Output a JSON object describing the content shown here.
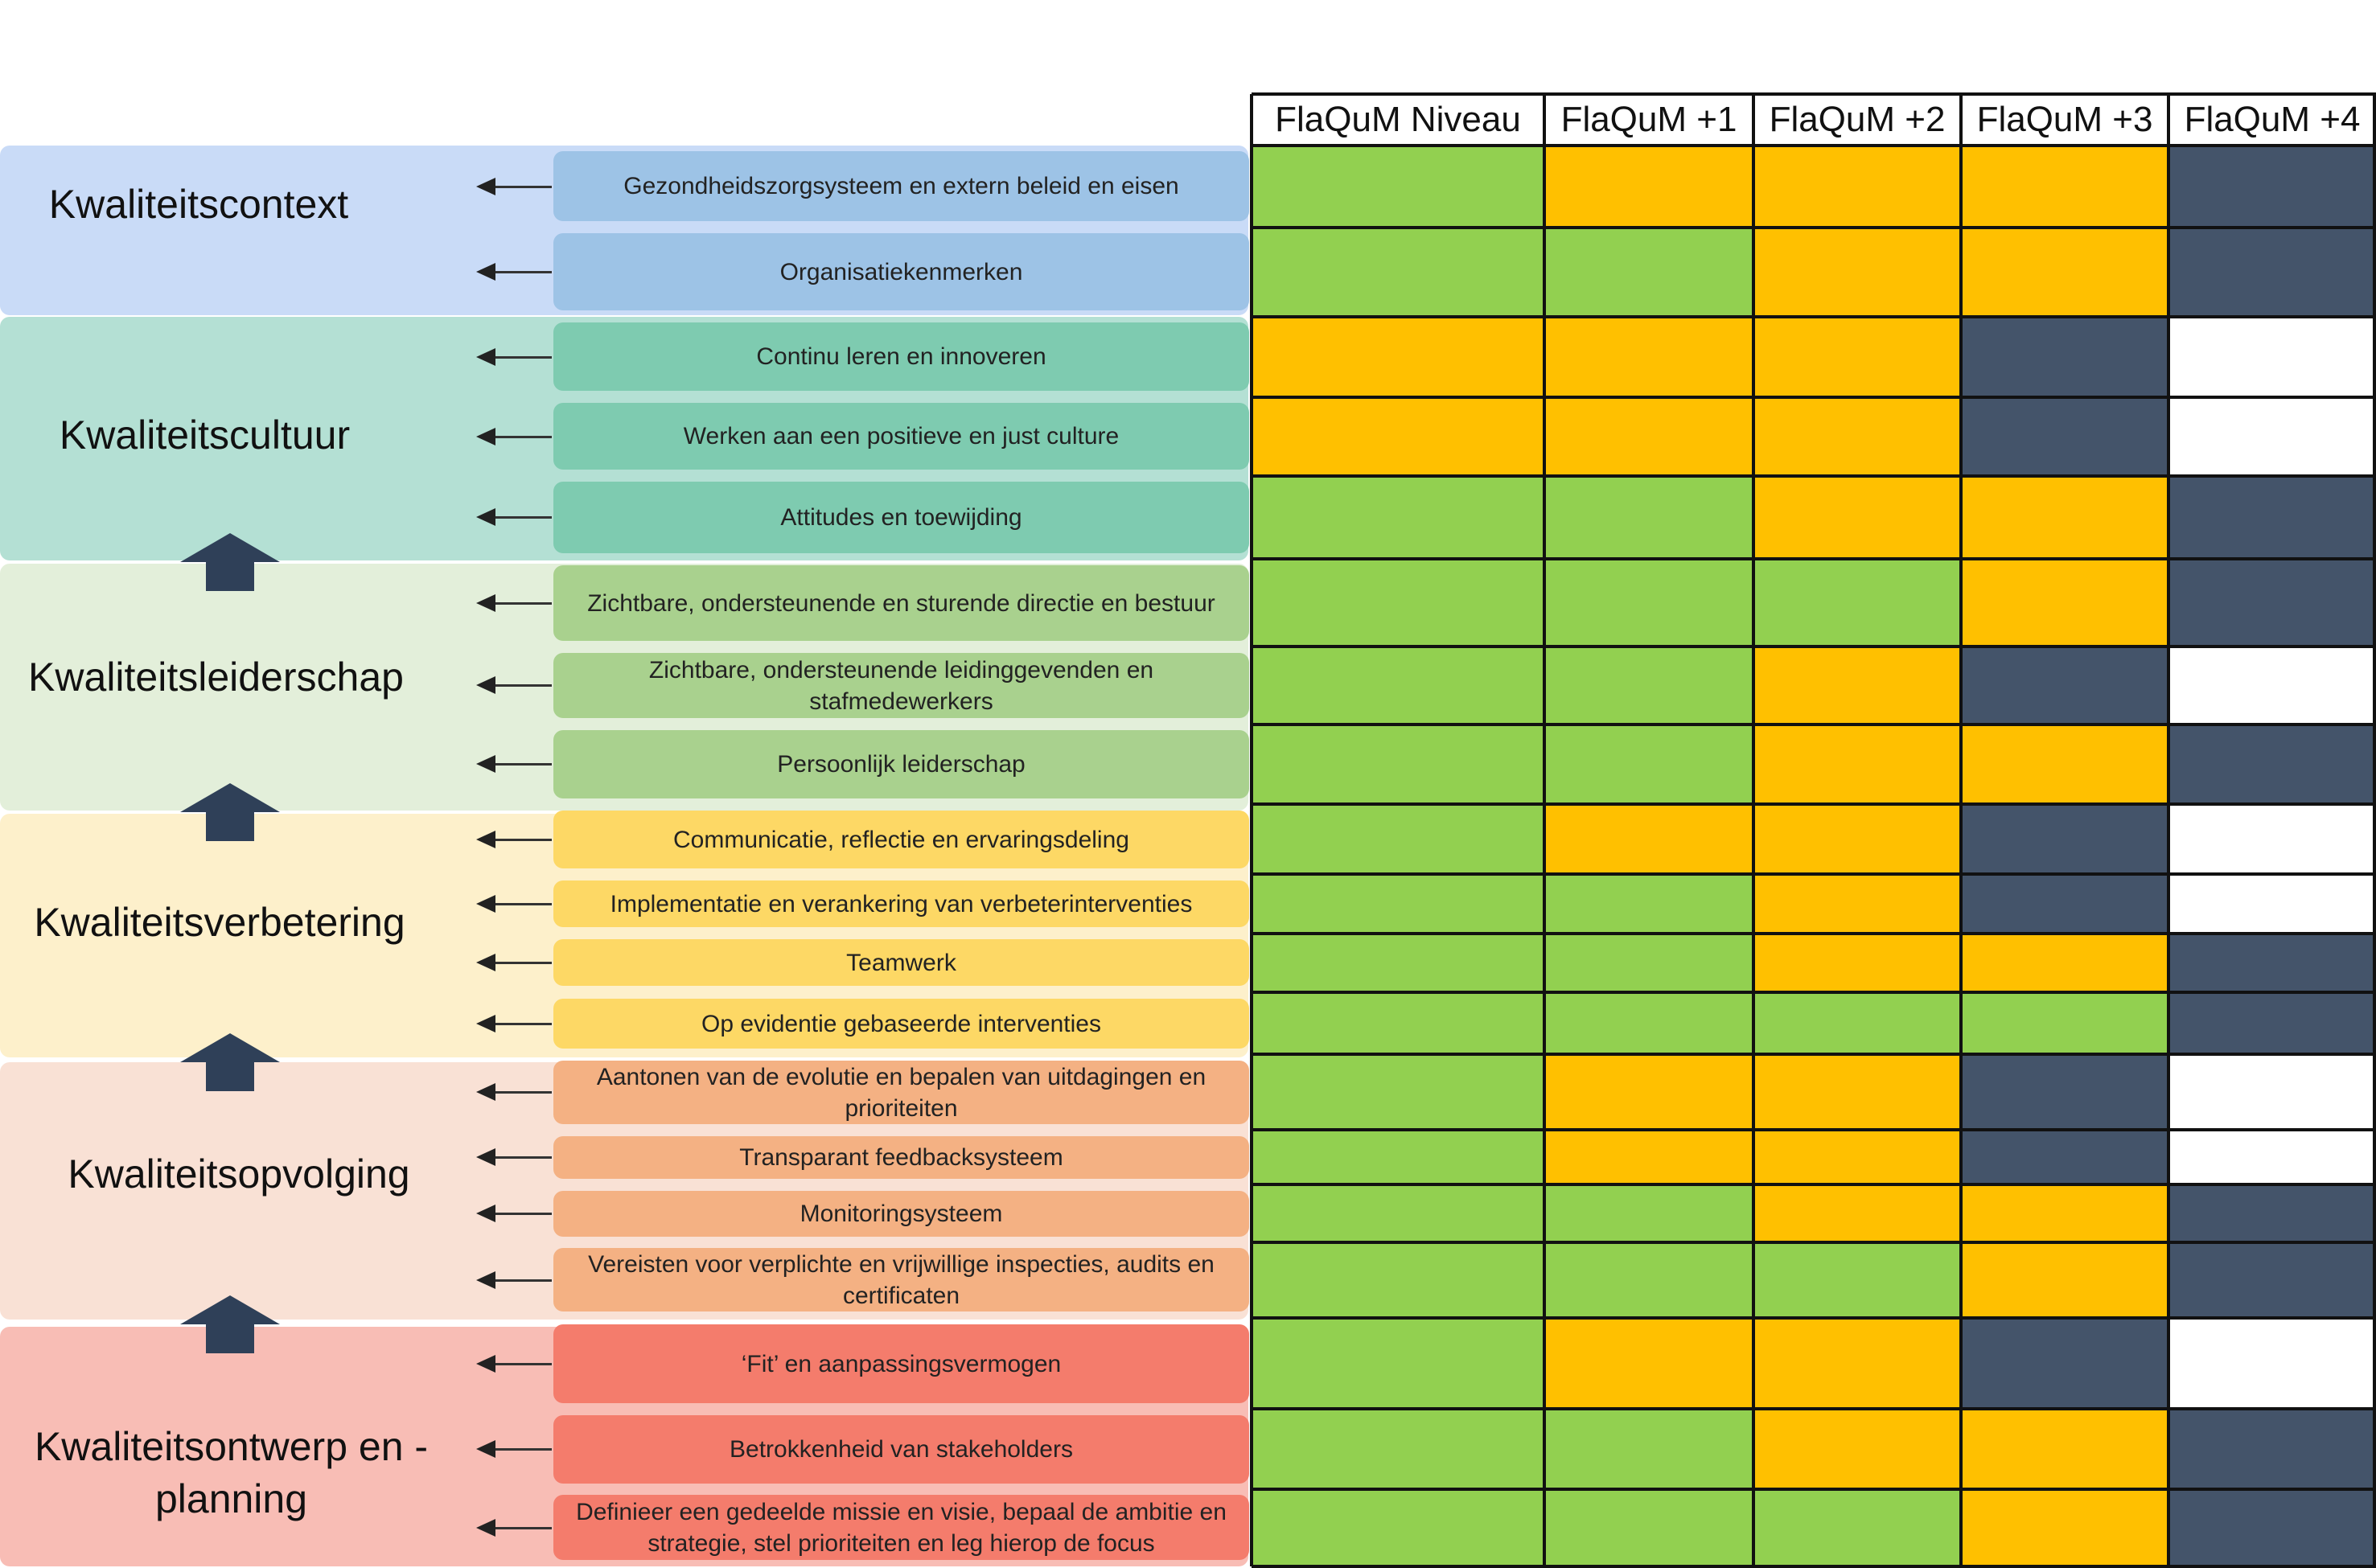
{
  "colors": {
    "green": "#92d050",
    "orange": "#ffc000",
    "navy": "#44546a",
    "white": "#ffffff"
  },
  "header": {
    "columns": [
      "FlaQuM Niveau",
      "FlaQuM +1",
      "FlaQuM +2",
      "FlaQuM +3",
      "FlaQuM +4"
    ]
  },
  "categories": [
    {
      "label": "Kwaliteitscontext",
      "items": [
        {
          "text": "Gezondheidszorgsysteem en extern beleid en eisen",
          "levels": [
            "green",
            "orange",
            "orange",
            "orange",
            "navy"
          ]
        },
        {
          "text": "Organisatiekenmerken",
          "levels": [
            "green",
            "green",
            "orange",
            "orange",
            "navy"
          ]
        }
      ]
    },
    {
      "label": "Kwaliteitscultuur",
      "items": [
        {
          "text": "Continu leren en innoveren",
          "levels": [
            "orange",
            "orange",
            "orange",
            "navy",
            "white"
          ]
        },
        {
          "text": "Werken aan een positieve en just culture",
          "levels": [
            "orange",
            "orange",
            "orange",
            "navy",
            "white"
          ]
        },
        {
          "text": "Attitudes en toewijding",
          "levels": [
            "green",
            "green",
            "orange",
            "orange",
            "navy"
          ]
        }
      ]
    },
    {
      "label": "Kwaliteitsleiderschap",
      "items": [
        {
          "text": "Zichtbare, ondersteunende en sturende directie en bestuur",
          "levels": [
            "green",
            "green",
            "green",
            "orange",
            "navy"
          ]
        },
        {
          "text": "Zichtbare, ondersteunende leidinggevenden en stafmedewerkers",
          "levels": [
            "green",
            "green",
            "orange",
            "navy",
            "white"
          ]
        },
        {
          "text": "Persoonlijk leiderschap",
          "levels": [
            "green",
            "green",
            "orange",
            "orange",
            "navy"
          ]
        }
      ]
    },
    {
      "label": "Kwaliteitsverbetering",
      "items": [
        {
          "text": "Communicatie, reflectie en ervaringsdeling",
          "levels": [
            "green",
            "orange",
            "orange",
            "navy",
            "white"
          ]
        },
        {
          "text": "Implementatie en verankering van verbeterinterventies",
          "levels": [
            "green",
            "green",
            "orange",
            "navy",
            "white"
          ]
        },
        {
          "text": "Teamwerk",
          "levels": [
            "green",
            "green",
            "orange",
            "orange",
            "navy"
          ]
        },
        {
          "text": "Op evidentie gebaseerde interventies",
          "levels": [
            "green",
            "green",
            "green",
            "green",
            "navy"
          ]
        }
      ]
    },
    {
      "label": "Kwaliteitsopvolging",
      "items": [
        {
          "text": "Aantonen van de evolutie en bepalen van uitdagingen en prioriteiten",
          "levels": [
            "green",
            "orange",
            "orange",
            "navy",
            "white"
          ]
        },
        {
          "text": "Transparant feedbacksysteem",
          "levels": [
            "green",
            "orange",
            "orange",
            "navy",
            "white"
          ]
        },
        {
          "text": "Monitoringsysteem",
          "levels": [
            "green",
            "green",
            "orange",
            "orange",
            "navy"
          ]
        },
        {
          "text": "Vereisten voor verplichte en vrijwillige inspecties, audits en certificaten",
          "levels": [
            "green",
            "green",
            "green",
            "orange",
            "navy"
          ]
        }
      ]
    },
    {
      "label": "Kwaliteitsontwerp en -planning",
      "items": [
        {
          "text": "‘Fit’ en aanpassingsvermogen",
          "levels": [
            "green",
            "orange",
            "orange",
            "navy",
            "white"
          ]
        },
        {
          "text": "Betrokkenheid van stakeholders",
          "levels": [
            "green",
            "green",
            "orange",
            "orange",
            "navy"
          ]
        },
        {
          "text": "Definieer een gedeelde missie en visie, bepaal de ambitie en strategie, stel prioriteiten en leg hierop de focus",
          "levels": [
            "green",
            "green",
            "green",
            "orange",
            "navy"
          ]
        }
      ]
    }
  ]
}
